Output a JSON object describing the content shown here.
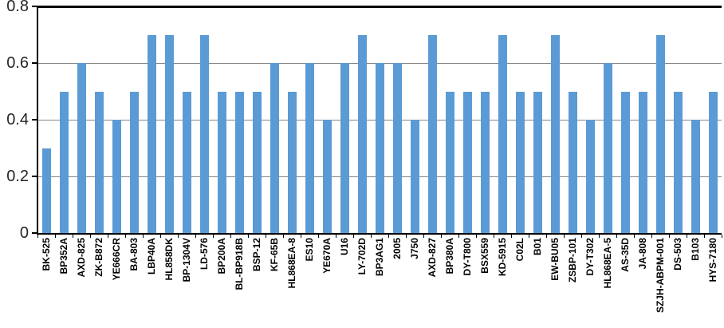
{
  "chart_data": {
    "type": "bar",
    "title": "",
    "xlabel": "",
    "ylabel": "",
    "legend": "none",
    "grid": "horizontal",
    "ylim": [
      0,
      0.8
    ],
    "yticks": [
      0,
      0.2,
      0.4,
      0.6,
      0.8
    ],
    "ytick_labels": [
      "0",
      "0.2",
      "0.4",
      "0.6",
      "0.8"
    ],
    "categories": [
      "BK-525",
      "BP352A",
      "AXD-825",
      "ZK-B872",
      "YE666CR",
      "BA-803",
      "LBP40A",
      "HL858DK",
      "BP-1304V",
      "LD-576",
      "BP200A",
      "BL-BP918B",
      "BSP-12",
      "KF-65B",
      "HL868EA-8",
      "ES10",
      "YE670A",
      "U16",
      "LY-702D",
      "BP3AG1",
      "2005",
      "J750",
      "AXD-827",
      "BP380A",
      "DY-T800",
      "BSX559",
      "KD-5915",
      "C02L",
      "B01",
      "EW-BU05",
      "ZSBP-101",
      "DY-T302",
      "HL868EA-5",
      "AS-35D",
      "JA-808",
      "SZJH-ABPM-001",
      "DS-503",
      "B103",
      "HYS-7180"
    ],
    "values": [
      0.3,
      0.5,
      0.6,
      0.5,
      0.4,
      0.5,
      0.7,
      0.7,
      0.5,
      0.7,
      0.5,
      0.5,
      0.5,
      0.6,
      0.5,
      0.6,
      0.4,
      0.6,
      0.7,
      0.6,
      0.6,
      0.4,
      0.7,
      0.5,
      0.5,
      0.5,
      0.7,
      0.5,
      0.5,
      0.7,
      0.5,
      0.4,
      0.6,
      0.5,
      0.5,
      0.7,
      0.5,
      0.4,
      0.5
    ],
    "colors": {
      "bar": "#5B9BD5",
      "gridline": "#878787",
      "axis": "#000000",
      "plot_border_top": "#000000",
      "ytick_label": "#262626",
      "category_label": "#000000",
      "background": "#FFFFFF"
    }
  }
}
